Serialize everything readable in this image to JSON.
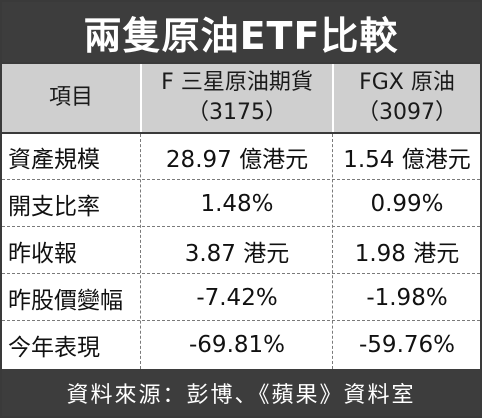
{
  "title": "兩隻原油ETF比較",
  "header": {
    "item_label": "項目",
    "col1_name": "F 三星原油期貨",
    "col1_code": "（3175）",
    "col2_name": "FGX 原油",
    "col2_code": "（3097）"
  },
  "rows": [
    {
      "label": "資產規模",
      "v1": "28.97 億港元",
      "v2": "1.54 億港元"
    },
    {
      "label": "開支比率",
      "v1": "1.48%",
      "v2": "0.99%"
    },
    {
      "label": "昨收報",
      "v1": "3.87 港元",
      "v2": "1.98 港元"
    },
    {
      "label": "昨股價變幅",
      "v1": "-7.42%",
      "v2": "-1.98%"
    },
    {
      "label": "今年表現",
      "v1": "-69.81%",
      "v2": "-59.76%"
    }
  ],
  "source": "資料來源：彭博、《蘋果》資料室"
}
